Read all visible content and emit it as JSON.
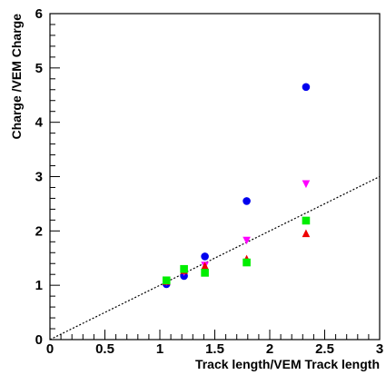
{
  "chart_data": {
    "type": "scatter",
    "title": "",
    "xlabel": "Track length/VEM Track length",
    "ylabel": "Charge /VEM Charge",
    "xlim": [
      0,
      3
    ],
    "ylim": [
      0,
      6
    ],
    "x_major_ticks": [
      0,
      0.5,
      1,
      1.5,
      2,
      2.5,
      3
    ],
    "x_tick_labels": [
      "0",
      "0.5",
      "1",
      "1.5",
      "2",
      "2.5",
      "3"
    ],
    "y_major_ticks": [
      0,
      1,
      2,
      3,
      4,
      5,
      6
    ],
    "y_tick_labels": [
      "0",
      "1",
      "2",
      "3",
      "4",
      "5",
      "6"
    ],
    "grid": false,
    "legend": "none",
    "series": [
      {
        "marker": "circle",
        "color": "#0000ee",
        "points": [
          [
            1.06,
            1.02
          ],
          [
            1.22,
            1.17
          ],
          [
            1.41,
            1.53
          ],
          [
            1.79,
            2.55
          ],
          [
            2.33,
            4.65
          ]
        ]
      },
      {
        "marker": "triangle-down",
        "color": "#ff00ff",
        "points": [
          [
            1.06,
            1.07
          ],
          [
            1.22,
            1.25
          ],
          [
            1.41,
            1.37
          ],
          [
            1.79,
            1.83
          ],
          [
            2.33,
            2.87
          ]
        ]
      },
      {
        "marker": "triangle-up",
        "color": "#ee0000",
        "points": [
          [
            1.06,
            1.07
          ],
          [
            1.22,
            1.27
          ],
          [
            1.41,
            1.35
          ],
          [
            1.79,
            1.48
          ],
          [
            2.33,
            1.95
          ]
        ]
      },
      {
        "marker": "square",
        "color": "#00ee00",
        "points": [
          [
            1.06,
            1.09
          ],
          [
            1.22,
            1.3
          ],
          [
            1.41,
            1.23
          ],
          [
            1.79,
            1.42
          ],
          [
            2.33,
            2.19
          ]
        ]
      }
    ],
    "reference_line": {
      "style": "dotted",
      "color": "#000000",
      "slope": 1,
      "intercept": 0
    }
  }
}
